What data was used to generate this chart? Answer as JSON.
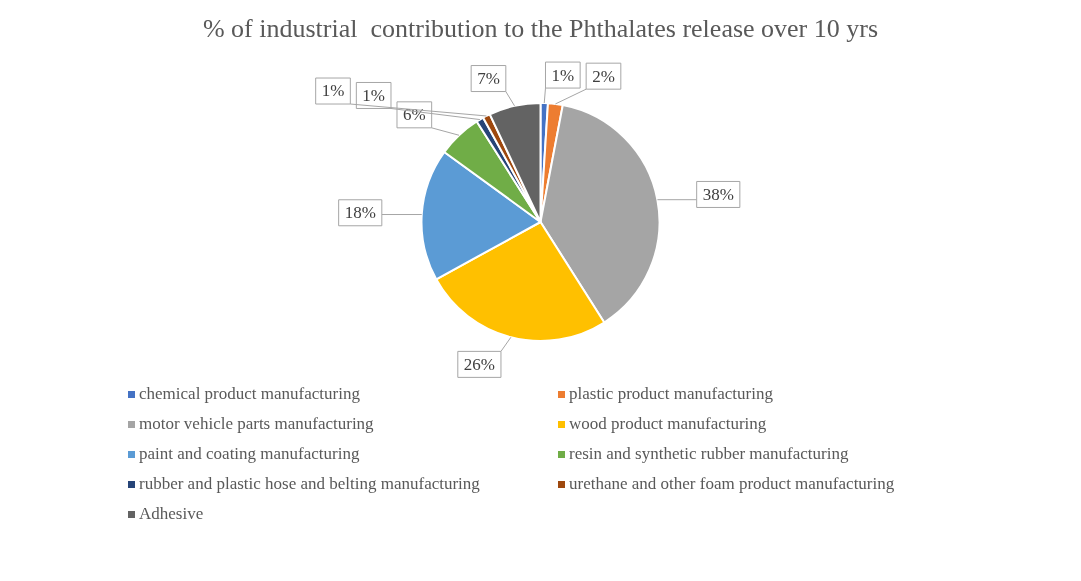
{
  "chart_data": {
    "type": "pie",
    "title": "% of industrial  contribution to the Phthalates release over 10 yrs",
    "categories": [
      " chemical product manufacturing",
      "plastic product manufacturing",
      "motor vehicle parts manufacturing",
      "wood product manufacturing",
      "paint and coating manufacturing",
      "resin and synthetic rubber manufacturing",
      "rubber and plastic hose and belting manufacturing",
      "urethane and other foam product manufacturing",
      "Adhesive"
    ],
    "values": [
      1,
      2,
      38,
      26,
      18,
      6,
      1,
      1,
      7
    ],
    "colors": [
      "#4472c4",
      "#ed7d31",
      "#a5a5a5",
      "#ffc000",
      "#5b9bd5",
      "#70ad47",
      "#264478",
      "#9e480e",
      "#636363"
    ],
    "value_labels": [
      "1%",
      "2%",
      "38%",
      "26%",
      "18%",
      "6%",
      "1%",
      "1%",
      "7%"
    ],
    "legend": "bottom"
  }
}
